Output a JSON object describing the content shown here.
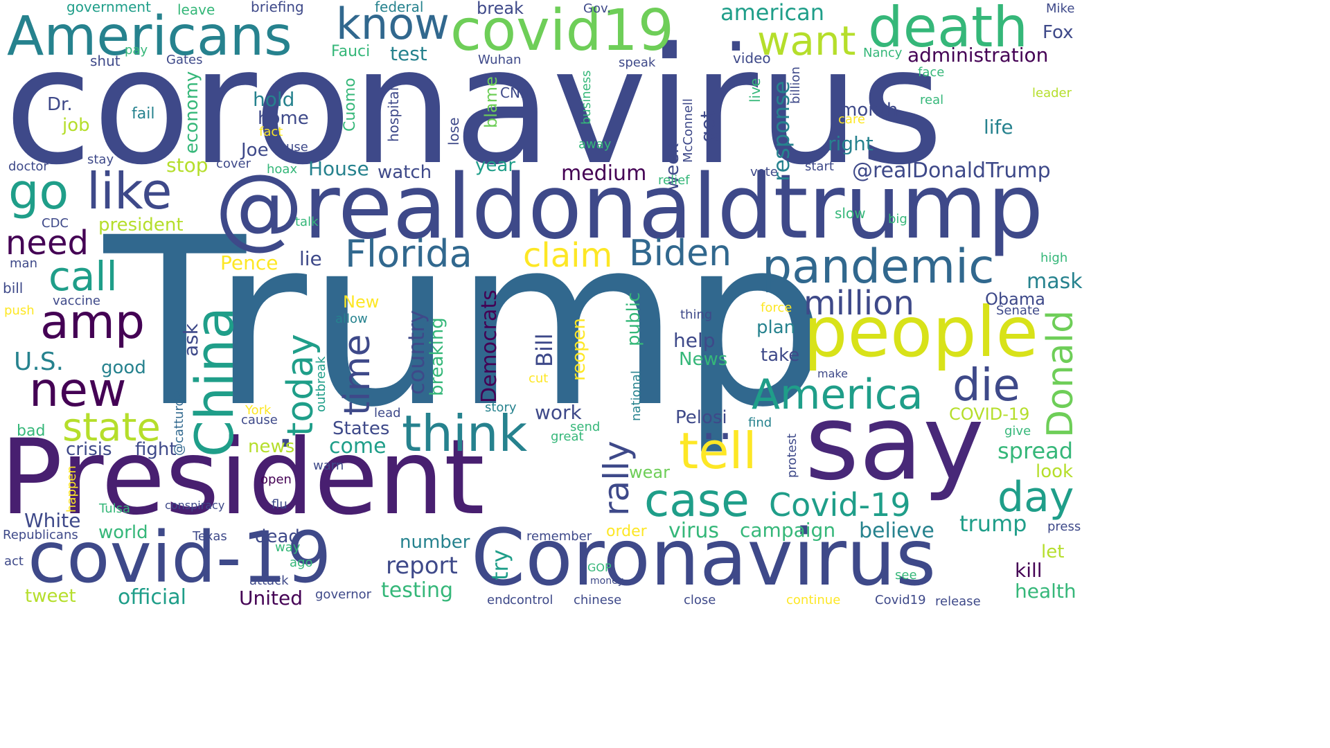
{
  "palette": {
    "dark_purple": "#440154",
    "indigo": "#3e4989",
    "blue": "#31688e",
    "teal": "#26828e",
    "green_teal": "#1f9e89",
    "green": "#35b779",
    "light_green": "#6ece58",
    "yellow_green": "#b5de2b",
    "yellow": "#fde725"
  },
  "words": {
    "trump_big": "Trump",
    "coronavirus": "coronavirus",
    "president_cap": "President",
    "realdonaldtrump": "@realdonaldtrump",
    "say": "say",
    "coronavirus_cap": "Coronavirus",
    "covid19_dash": "covid-19",
    "americans": "Americans",
    "covid19": "covid19",
    "death": "death",
    "people": "people",
    "china": "China",
    "know": "know",
    "want": "want",
    "pandemic": "pandemic",
    "america": "America",
    "think": "think",
    "amp": "amp",
    "like": "like",
    "go": "go",
    "case": "case",
    "new": "new",
    "tell": "tell",
    "die": "die",
    "florida": "Florida",
    "day": "day",
    "biden": "Biden",
    "covid19_cap": "Covid-19",
    "million": "million",
    "state": "state",
    "call": "call",
    "need": "need",
    "donald": "Donald",
    "claim": "claim",
    "time": "time",
    "today": "today",
    "us": "U.S.",
    "rally": "rally",
    "at_realdonaldtrump": "@realDonaldTrump",
    "american": "american",
    "administration": "administration",
    "response": "response",
    "report": "report",
    "medium": "medium",
    "country": "country",
    "democrats": "Democrats",
    "fox": "Fox",
    "house": "House",
    "mask": "mask",
    "spread": "spread",
    "trump_lower": "trump",
    "virus": "virus",
    "believe": "believe",
    "campaign": "campaign",
    "testing": "testing",
    "official": "official",
    "united": "United",
    "health": "health",
    "kill": "kill",
    "month": "month",
    "right": "right",
    "life": "life",
    "hold": "hold",
    "home": "home",
    "joe": "Joe",
    "president": "president",
    "stop": "stop",
    "fauci": "Fauci",
    "test": "test",
    "know_small": "break",
    "pence": "Pence",
    "lie": "lie",
    "watch": "watch",
    "year": "year",
    "plan": "plan",
    "take": "take",
    "help": "help",
    "news_cap": "News",
    "week": "week",
    "get": "get",
    "obama": "Obama",
    "senate": "Senate",
    "new_cap": "New",
    "good": "good",
    "crisis": "crisis",
    "fight": "fight",
    "come": "come",
    "news": "news",
    "work": "work",
    "pelosi": "Pelosi",
    "covid19_upper": "COVID-19",
    "wear": "wear",
    "look": "look",
    "let": "let",
    "world": "world",
    "white": "White",
    "dead": "dead",
    "number": "number",
    "tweet": "tweet",
    "try": "try",
    "bill_cap": "Bill",
    "reopen": "reopen",
    "public": "public",
    "ask": "ask",
    "breaking": "breaking",
    "economy": "economy",
    "blame": "blame",
    "job": "job",
    "dr": "Dr.",
    "fail": "fail",
    "states": "States",
    "order": "order",
    "government": "government",
    "leave": "leave",
    "briefing": "briefing",
    "federal": "federal",
    "gov": "Gov.",
    "mike": "Mike",
    "pay": "pay",
    "gates": "Gates",
    "shut": "shut",
    "wuhan": "Wuhan",
    "speak": "speak",
    "video": "video",
    "nancy": "Nancy",
    "face": "face",
    "leader": "leader",
    "real": "real",
    "care": "care",
    "cnn": "CNN",
    "cuomo": "Cuomo",
    "hospital": "hospital",
    "business": "business",
    "mcconnell": "McConnell",
    "live": "live",
    "billion": "billion",
    "lose": "lose",
    "fact": "fact",
    "use": "use",
    "away": "away",
    "doctor": "doctor",
    "stay": "stay",
    "cover": "cover",
    "hoax": "hoax",
    "relief": "relief",
    "vote": "vote",
    "start": "start",
    "talk": "talk",
    "slow": "slow",
    "big": "big",
    "cdc": "CDC",
    "man": "man",
    "high": "high",
    "bill": "bill",
    "vaccine": "vaccine",
    "push": "push",
    "allow": "allow",
    "thing": "thing",
    "force": "force",
    "make": "make",
    "outbreak": "outbreak",
    "cut": "cut",
    "national": "national",
    "york": "York",
    "cause": "cause",
    "lead": "lead",
    "story": "story",
    "send": "send",
    "great": "great",
    "find": "find",
    "protest": "protest",
    "give": "give",
    "catturd2": "@catturd2",
    "bad": "bad",
    "happen": "happen",
    "open": "open",
    "warn": "warn",
    "flu": "flu",
    "conspiracy": "conspiracy",
    "tulsa": "Tulsa",
    "republicans": "Republicans",
    "texas": "Texas",
    "remember": "remember",
    "press": "press",
    "way": "way",
    "ago": "ago",
    "act": "act",
    "attack": "attack",
    "gop": "GOP",
    "money": "money",
    "see": "see",
    "governor": "governor",
    "end": "end",
    "control": "control",
    "chinese": "chinese",
    "close": "close",
    "continue": "continue",
    "covid19_cap2": "Covid19",
    "release": "release",
    "dot": "."
  }
}
